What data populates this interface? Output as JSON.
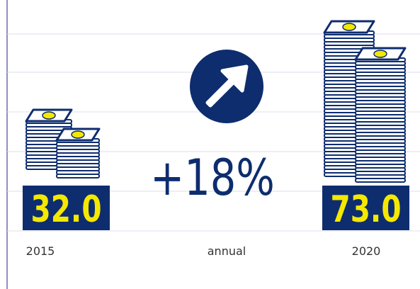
{
  "items": [
    {
      "year": "2015",
      "value": "32.0"
    },
    {
      "year": "2020",
      "value": "73.0"
    }
  ],
  "growth": {
    "value": "+18%",
    "label": "annual"
  }
}
